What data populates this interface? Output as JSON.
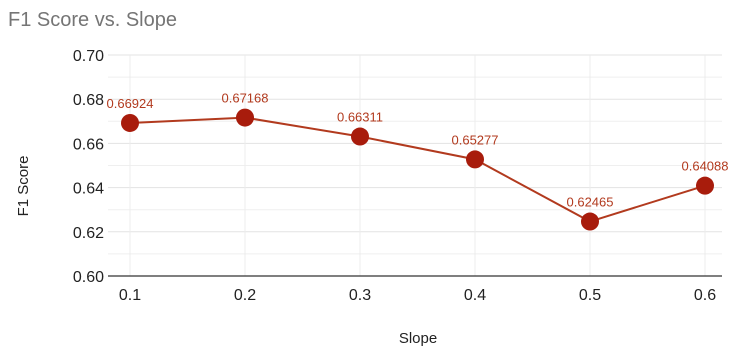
{
  "chart_data": {
    "type": "line",
    "title": "F1 Score vs. Slope",
    "xlabel": "Slope",
    "ylabel": "F1 Score",
    "x": [
      0.1,
      0.2,
      0.3,
      0.4,
      0.5,
      0.6
    ],
    "x_tick_labels": [
      "0.1",
      "0.2",
      "0.3",
      "0.4",
      "0.5",
      "0.6"
    ],
    "series": [
      {
        "values": [
          0.66924,
          0.67168,
          0.66311,
          0.65277,
          0.62465,
          0.64088
        ],
        "data_labels": [
          "0.66924",
          "0.67168",
          "0.66311",
          "0.65277",
          "0.62465",
          "0.64088"
        ]
      }
    ],
    "ylim": [
      0.6,
      0.7
    ],
    "y_ticks": [
      0.6,
      0.62,
      0.64,
      0.66,
      0.68,
      0.7
    ],
    "y_tick_labels": [
      "0.60",
      "0.62",
      "0.64",
      "0.66",
      "0.68",
      "0.70"
    ],
    "grid": true,
    "minor_grid": true,
    "legend": "none",
    "colors": {
      "line": "#b23a1e",
      "marker": "#a81c0c",
      "data_label": "#b23a1e",
      "grid": "#e3e3e3",
      "axis": "#333333"
    }
  }
}
